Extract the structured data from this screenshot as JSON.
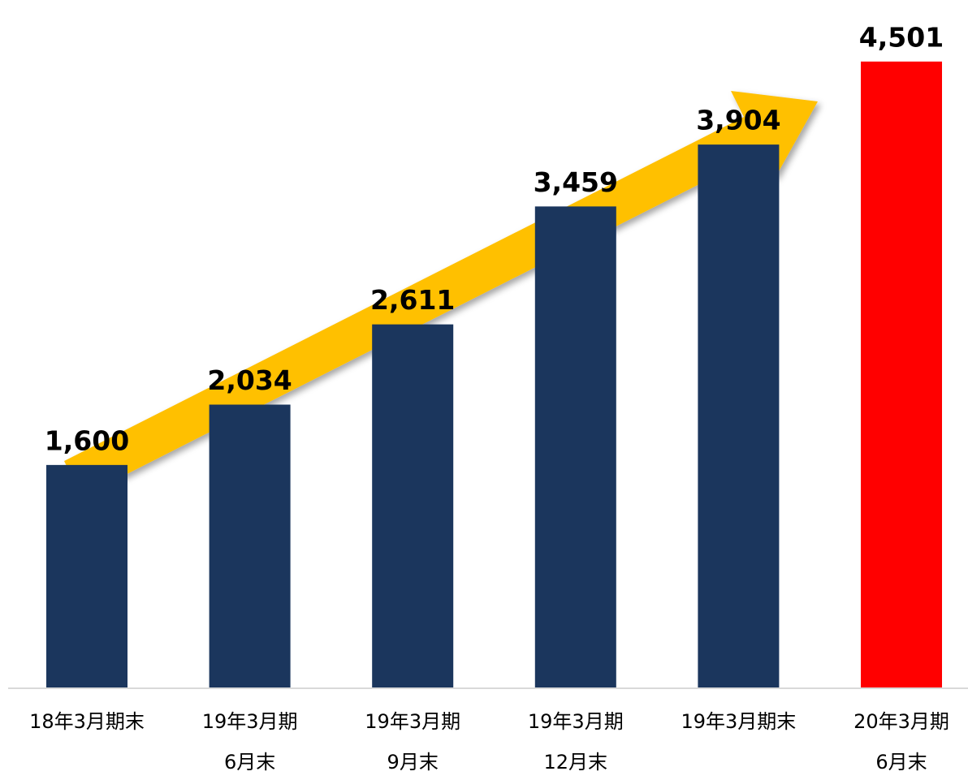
{
  "chart_data": {
    "type": "bar",
    "categories": [
      "18年3月期末",
      "19年3月期\n6月末",
      "19年3月期\n9月末",
      "19年3月期\n12月末",
      "19年3月期末",
      "20年3月期\n6月末"
    ],
    "values": [
      1600,
      2034,
      2611,
      3459,
      3904,
      4501
    ],
    "value_labels": [
      "1,600",
      "2,034",
      "2,611",
      "3,459",
      "3,904",
      "4,501"
    ],
    "colors": [
      "#1b365d",
      "#1b365d",
      "#1b365d",
      "#1b365d",
      "#1b365d",
      "#ff0000"
    ],
    "ylim": [
      0,
      4500
    ]
  }
}
